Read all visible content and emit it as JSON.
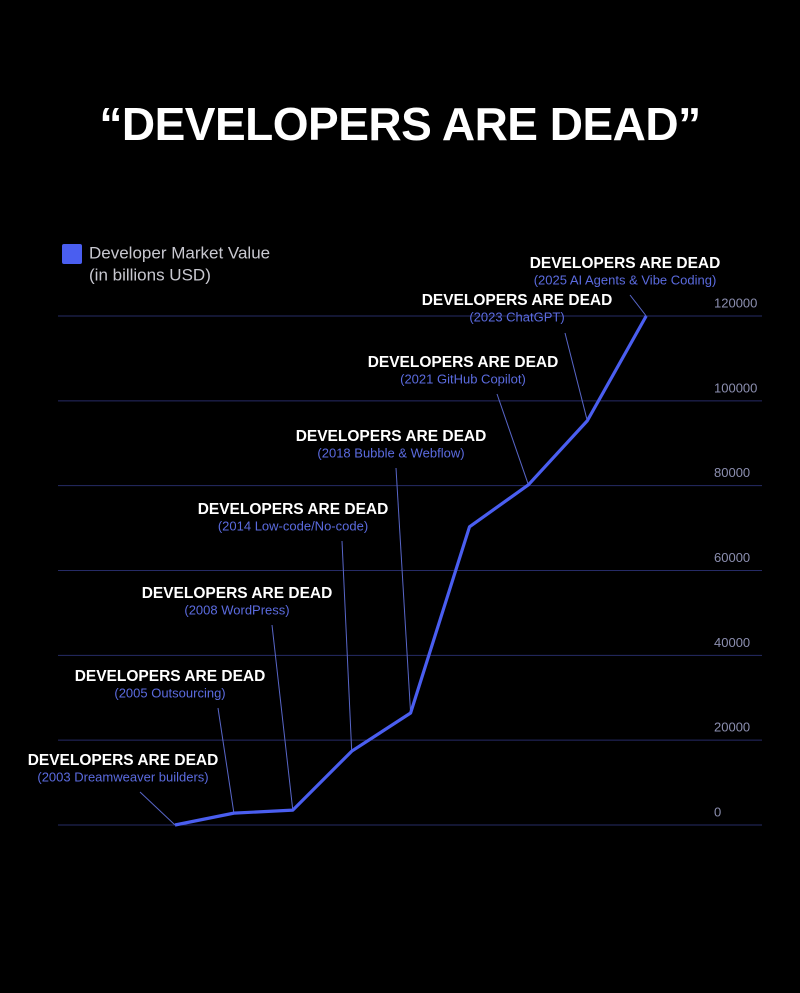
{
  "chart_data": {
    "type": "line",
    "title": "“DEVELOPERS ARE DEAD”",
    "y_label": "(in billions USD)",
    "categories": [
      "(2003 Dreamweaver builders)",
      "(2005 Outsourcing)",
      "(2008 WordPress)",
      "(2014 Low-code/No-code)",
      "(2018 Bubble & Webflow)",
      null,
      "(2021 GitHub Copilot)",
      "(2023 ChatGPT)",
      "(2025 AI Agents & Vibe Coding)"
    ],
    "point_labels": [
      "DEVELOPERS ARE DEAD",
      "DEVELOPERS ARE DEAD",
      "DEVELOPERS ARE DEAD",
      "DEVELOPERS ARE DEAD",
      "DEVELOPERS ARE DEAD",
      null,
      "DEVELOPERS ARE DEAD",
      "DEVELOPERS ARE DEAD",
      "DEVELOPERS ARE DEAD"
    ],
    "series": [
      {
        "name": "Developer Market Value",
        "color": "#4a5ef0",
        "values": [
          0,
          2800,
          3500,
          17400,
          26400,
          70300,
          80200,
          95300,
          120000
        ]
      }
    ],
    "ylim": [
      0,
      120000
    ],
    "yticks": [
      0,
      20000,
      40000,
      60000,
      80000,
      100000,
      120000
    ],
    "grid": true,
    "legend": "top-left"
  }
}
